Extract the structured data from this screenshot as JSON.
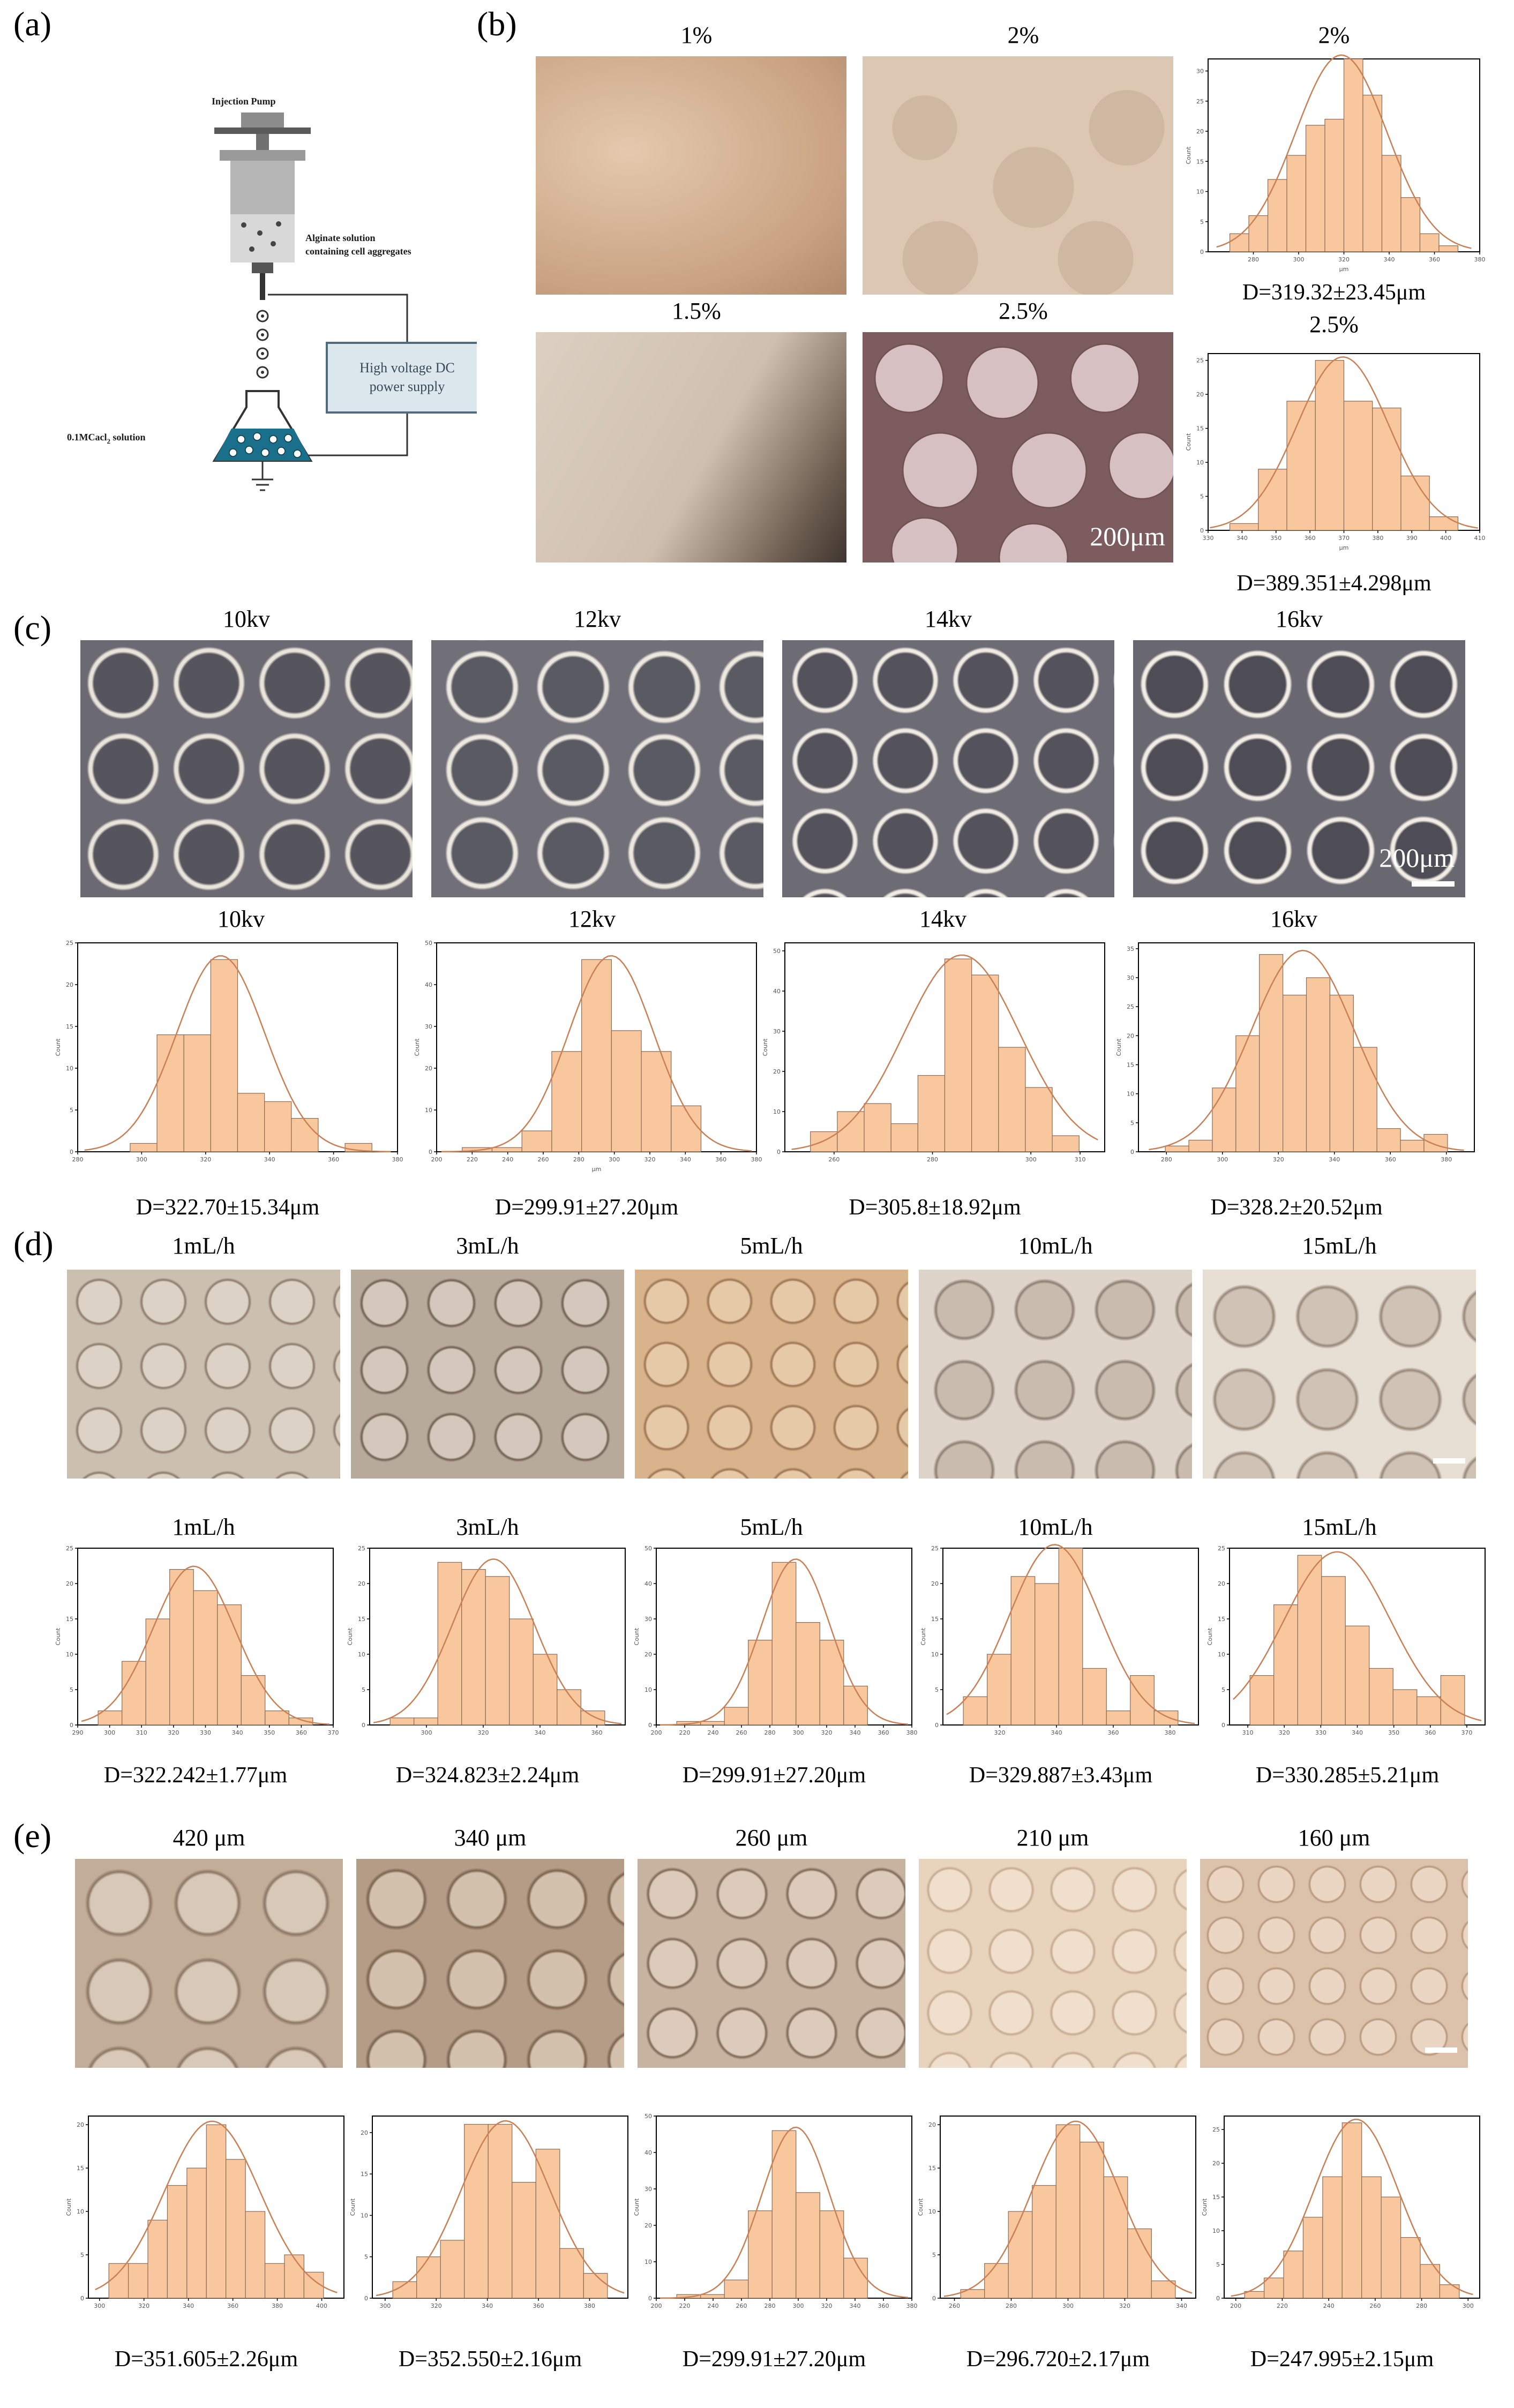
{
  "panels": {
    "a": "(a)",
    "b": "(b)",
    "c": "(c)",
    "d": "(d)",
    "e": "(e)"
  },
  "schematic": {
    "pump": "Injection Pump",
    "alginate_line1": "Alginate solution",
    "alginate_line2": "containing cell aggregates",
    "hv_line1": "High voltage DC",
    "hv_line2": "power supply",
    "cacl_main": "0.1MCacl",
    "cacl_sub": "2",
    "cacl_tail": " solution"
  },
  "scale": {
    "um200": "200μm"
  },
  "b": {
    "labels": [
      "1%",
      "2%",
      "1.5%",
      "2.5%"
    ],
    "hist_titles": [
      "2%",
      "2.5%"
    ],
    "d_values": [
      "D=319.32±23.45μm",
      "D=389.351±4.298μm"
    ]
  },
  "c": {
    "labels": [
      "10kv",
      "12kv",
      "14kv",
      "16kv"
    ],
    "d_values": [
      "D=322.70±15.34μm",
      "D=299.91±27.20μm",
      "D=305.8±18.92μm",
      "D=328.2±20.52μm"
    ]
  },
  "d": {
    "labels": [
      "1mL/h",
      "3mL/h",
      "5mL/h",
      "10mL/h",
      "15mL/h"
    ],
    "d_values": [
      "D=322.242±1.77μm",
      "D=324.823±2.24μm",
      "D=299.91±27.20μm",
      "D=329.887±3.43μm",
      "D=330.285±5.21μm"
    ]
  },
  "e": {
    "labels": [
      "420 μm",
      "340 μm",
      "260 μm",
      "210 μm",
      "160 μm"
    ],
    "d_values": [
      "D=351.605±2.26μm",
      "D=352.550±2.16μm",
      "D=299.91±27.20μm",
      "D=296.720±2.17μm",
      "D=247.995±2.15μm"
    ]
  },
  "colors": {
    "bar": "#f9c79d",
    "fit": "#c98055",
    "sepia": "#c9a88a",
    "phase": "#4a4a52"
  },
  "chart_data": [
    {
      "id": "b-2",
      "type": "bar",
      "title": "2%",
      "xlabel": "μm",
      "ylabel": "Count",
      "x_ticks": [
        280,
        300,
        320,
        340,
        360,
        380
      ],
      "xlim": [
        260,
        380
      ],
      "y_ticks": [
        0,
        5,
        10,
        15,
        20,
        25,
        30
      ],
      "ylim": [
        0,
        32
      ],
      "values": [
        3,
        6,
        12,
        16,
        21,
        22,
        32,
        26,
        16,
        9,
        3,
        1
      ]
    },
    {
      "id": "b-2.5",
      "type": "bar",
      "title": "2.5%",
      "xlabel": "μm",
      "ylabel": "Count",
      "x_ticks": [
        330,
        340,
        350,
        360,
        370,
        380,
        390,
        400,
        410
      ],
      "xlim": [
        330,
        410
      ],
      "y_ticks": [
        0,
        5,
        10,
        15,
        20,
        25
      ],
      "ylim": [
        0,
        26
      ],
      "values": [
        1,
        9,
        19,
        25,
        19,
        18,
        8,
        2
      ]
    },
    {
      "id": "c-10",
      "type": "bar",
      "title": "10kv",
      "xlabel": "",
      "ylabel": "Count",
      "x_ticks": [
        280,
        300,
        320,
        340,
        360,
        380
      ],
      "xlim": [
        280,
        380
      ],
      "y_ticks": [
        0,
        5,
        10,
        15,
        20,
        25
      ],
      "ylim": [
        0,
        25
      ],
      "values": [
        0,
        1,
        14,
        14,
        23,
        7,
        6,
        4,
        0,
        1
      ]
    },
    {
      "id": "c-12",
      "type": "bar",
      "title": "12kv",
      "xlabel": "μm",
      "ylabel": "Count",
      "x_ticks": [
        200,
        220,
        240,
        260,
        280,
        300,
        320,
        340,
        360,
        380
      ],
      "xlim": [
        200,
        380
      ],
      "y_ticks": [
        0,
        10,
        20,
        30,
        40,
        50
      ],
      "ylim": [
        0,
        50
      ],
      "values": [
        1,
        1,
        5,
        24,
        46,
        29,
        24,
        11,
        0
      ]
    },
    {
      "id": "c-14",
      "type": "bar",
      "title": "14kv",
      "xlabel": "",
      "ylabel": "Count",
      "x_ticks": [
        260,
        280,
        300,
        310
      ],
      "xlim": [
        250,
        315
      ],
      "y_ticks": [
        0,
        10,
        20,
        30,
        40,
        50
      ],
      "ylim": [
        0,
        52
      ],
      "values": [
        5,
        10,
        12,
        7,
        19,
        48,
        44,
        26,
        16,
        4
      ]
    },
    {
      "id": "c-16",
      "type": "bar",
      "title": "16kv",
      "xlabel": "",
      "ylabel": "Count",
      "x_ticks": [
        280,
        300,
        320,
        340,
        360,
        380
      ],
      "xlim": [
        270,
        390
      ],
      "y_ticks": [
        0,
        5,
        10,
        15,
        20,
        25,
        30,
        35
      ],
      "ylim": [
        0,
        36
      ],
      "values": [
        1,
        2,
        11,
        20,
        34,
        27,
        30,
        27,
        18,
        4,
        2,
        3
      ]
    },
    {
      "id": "d-1",
      "type": "bar",
      "title": "1mL/h",
      "xlabel": "",
      "ylabel": "Count",
      "x_ticks": [
        290,
        300,
        310,
        320,
        330,
        340,
        350,
        360,
        370
      ],
      "xlim": [
        290,
        370
      ],
      "y_ticks": [
        0,
        5,
        10,
        15,
        20,
        25
      ],
      "ylim": [
        0,
        25
      ],
      "values": [
        2,
        9,
        15,
        22,
        19,
        17,
        7,
        2,
        1
      ]
    },
    {
      "id": "d-3",
      "type": "bar",
      "title": "3mL/h",
      "xlabel": "",
      "ylabel": "Count",
      "x_ticks": [
        300,
        320,
        340,
        360
      ],
      "xlim": [
        280,
        370
      ],
      "y_ticks": [
        0,
        5,
        10,
        15,
        20,
        25
      ],
      "ylim": [
        0,
        25
      ],
      "values": [
        1,
        1,
        23,
        22,
        21,
        15,
        10,
        5,
        2
      ]
    },
    {
      "id": "d-5",
      "type": "bar",
      "title": "5mL/h",
      "xlabel": "",
      "ylabel": "Count",
      "x_ticks": [
        200,
        220,
        240,
        260,
        280,
        300,
        320,
        340,
        360,
        380
      ],
      "xlim": [
        200,
        380
      ],
      "y_ticks": [
        0,
        10,
        20,
        30,
        40,
        50
      ],
      "ylim": [
        0,
        50
      ],
      "values": [
        1,
        1,
        5,
        24,
        46,
        29,
        24,
        11,
        0
      ]
    },
    {
      "id": "d-10",
      "type": "bar",
      "title": "10mL/h",
      "xlabel": "",
      "ylabel": "Count",
      "x_ticks": [
        320,
        340,
        360,
        380
      ],
      "xlim": [
        300,
        390
      ],
      "y_ticks": [
        0,
        5,
        10,
        15,
        20,
        25
      ],
      "ylim": [
        0,
        25
      ],
      "values": [
        4,
        10,
        21,
        20,
        25,
        8,
        2,
        7,
        2
      ]
    },
    {
      "id": "d-15",
      "type": "bar",
      "title": "15mL/h",
      "xlabel": "",
      "ylabel": "Count",
      "x_ticks": [
        310,
        320,
        330,
        340,
        350,
        360,
        370
      ],
      "xlim": [
        305,
        375
      ],
      "y_ticks": [
        0,
        5,
        10,
        15,
        20,
        25
      ],
      "ylim": [
        0,
        25
      ],
      "values": [
        7,
        17,
        24,
        21,
        14,
        8,
        5,
        4,
        7
      ]
    },
    {
      "id": "e-420",
      "type": "bar",
      "title": "",
      "xlabel": "",
      "ylabel": "Count",
      "x_ticks": [
        300,
        320,
        340,
        360,
        380,
        400
      ],
      "xlim": [
        295,
        410
      ],
      "y_ticks": [
        0,
        5,
        10,
        15,
        20
      ],
      "ylim": [
        0,
        21
      ],
      "values": [
        4,
        4,
        9,
        13,
        15,
        20,
        16,
        10,
        4,
        5,
        3
      ]
    },
    {
      "id": "e-340",
      "type": "bar",
      "title": "",
      "xlabel": "",
      "ylabel": "Count",
      "x_ticks": [
        300,
        320,
        340,
        360,
        380
      ],
      "xlim": [
        295,
        395
      ],
      "y_ticks": [
        0,
        5,
        10,
        15,
        20
      ],
      "ylim": [
        0,
        22
      ],
      "values": [
        2,
        5,
        7,
        21,
        21,
        14,
        18,
        6,
        3
      ]
    },
    {
      "id": "e-260",
      "type": "bar",
      "title": "",
      "xlabel": "",
      "ylabel": "Count",
      "x_ticks": [
        200,
        220,
        240,
        260,
        280,
        300,
        320,
        340,
        360,
        380
      ],
      "xlim": [
        200,
        380
      ],
      "y_ticks": [
        0,
        10,
        20,
        30,
        40,
        50
      ],
      "ylim": [
        0,
        50
      ],
      "values": [
        1,
        1,
        5,
        24,
        46,
        29,
        24,
        11,
        0
      ]
    },
    {
      "id": "e-210",
      "type": "bar",
      "title": "",
      "xlabel": "",
      "ylabel": "Count",
      "x_ticks": [
        260,
        280,
        300,
        320,
        340
      ],
      "xlim": [
        255,
        345
      ],
      "y_ticks": [
        0,
        5,
        10,
        15,
        20
      ],
      "ylim": [
        0,
        21
      ],
      "values": [
        1,
        4,
        10,
        13,
        20,
        18,
        14,
        8,
        2
      ]
    },
    {
      "id": "e-160",
      "type": "bar",
      "title": "",
      "xlabel": "",
      "ylabel": "Count",
      "x_ticks": [
        200,
        220,
        240,
        260,
        280,
        300
      ],
      "xlim": [
        195,
        305
      ],
      "y_ticks": [
        0,
        5,
        10,
        15,
        20,
        25
      ],
      "ylim": [
        0,
        27
      ],
      "values": [
        1,
        3,
        7,
        12,
        18,
        26,
        18,
        15,
        9,
        5,
        2
      ]
    }
  ]
}
